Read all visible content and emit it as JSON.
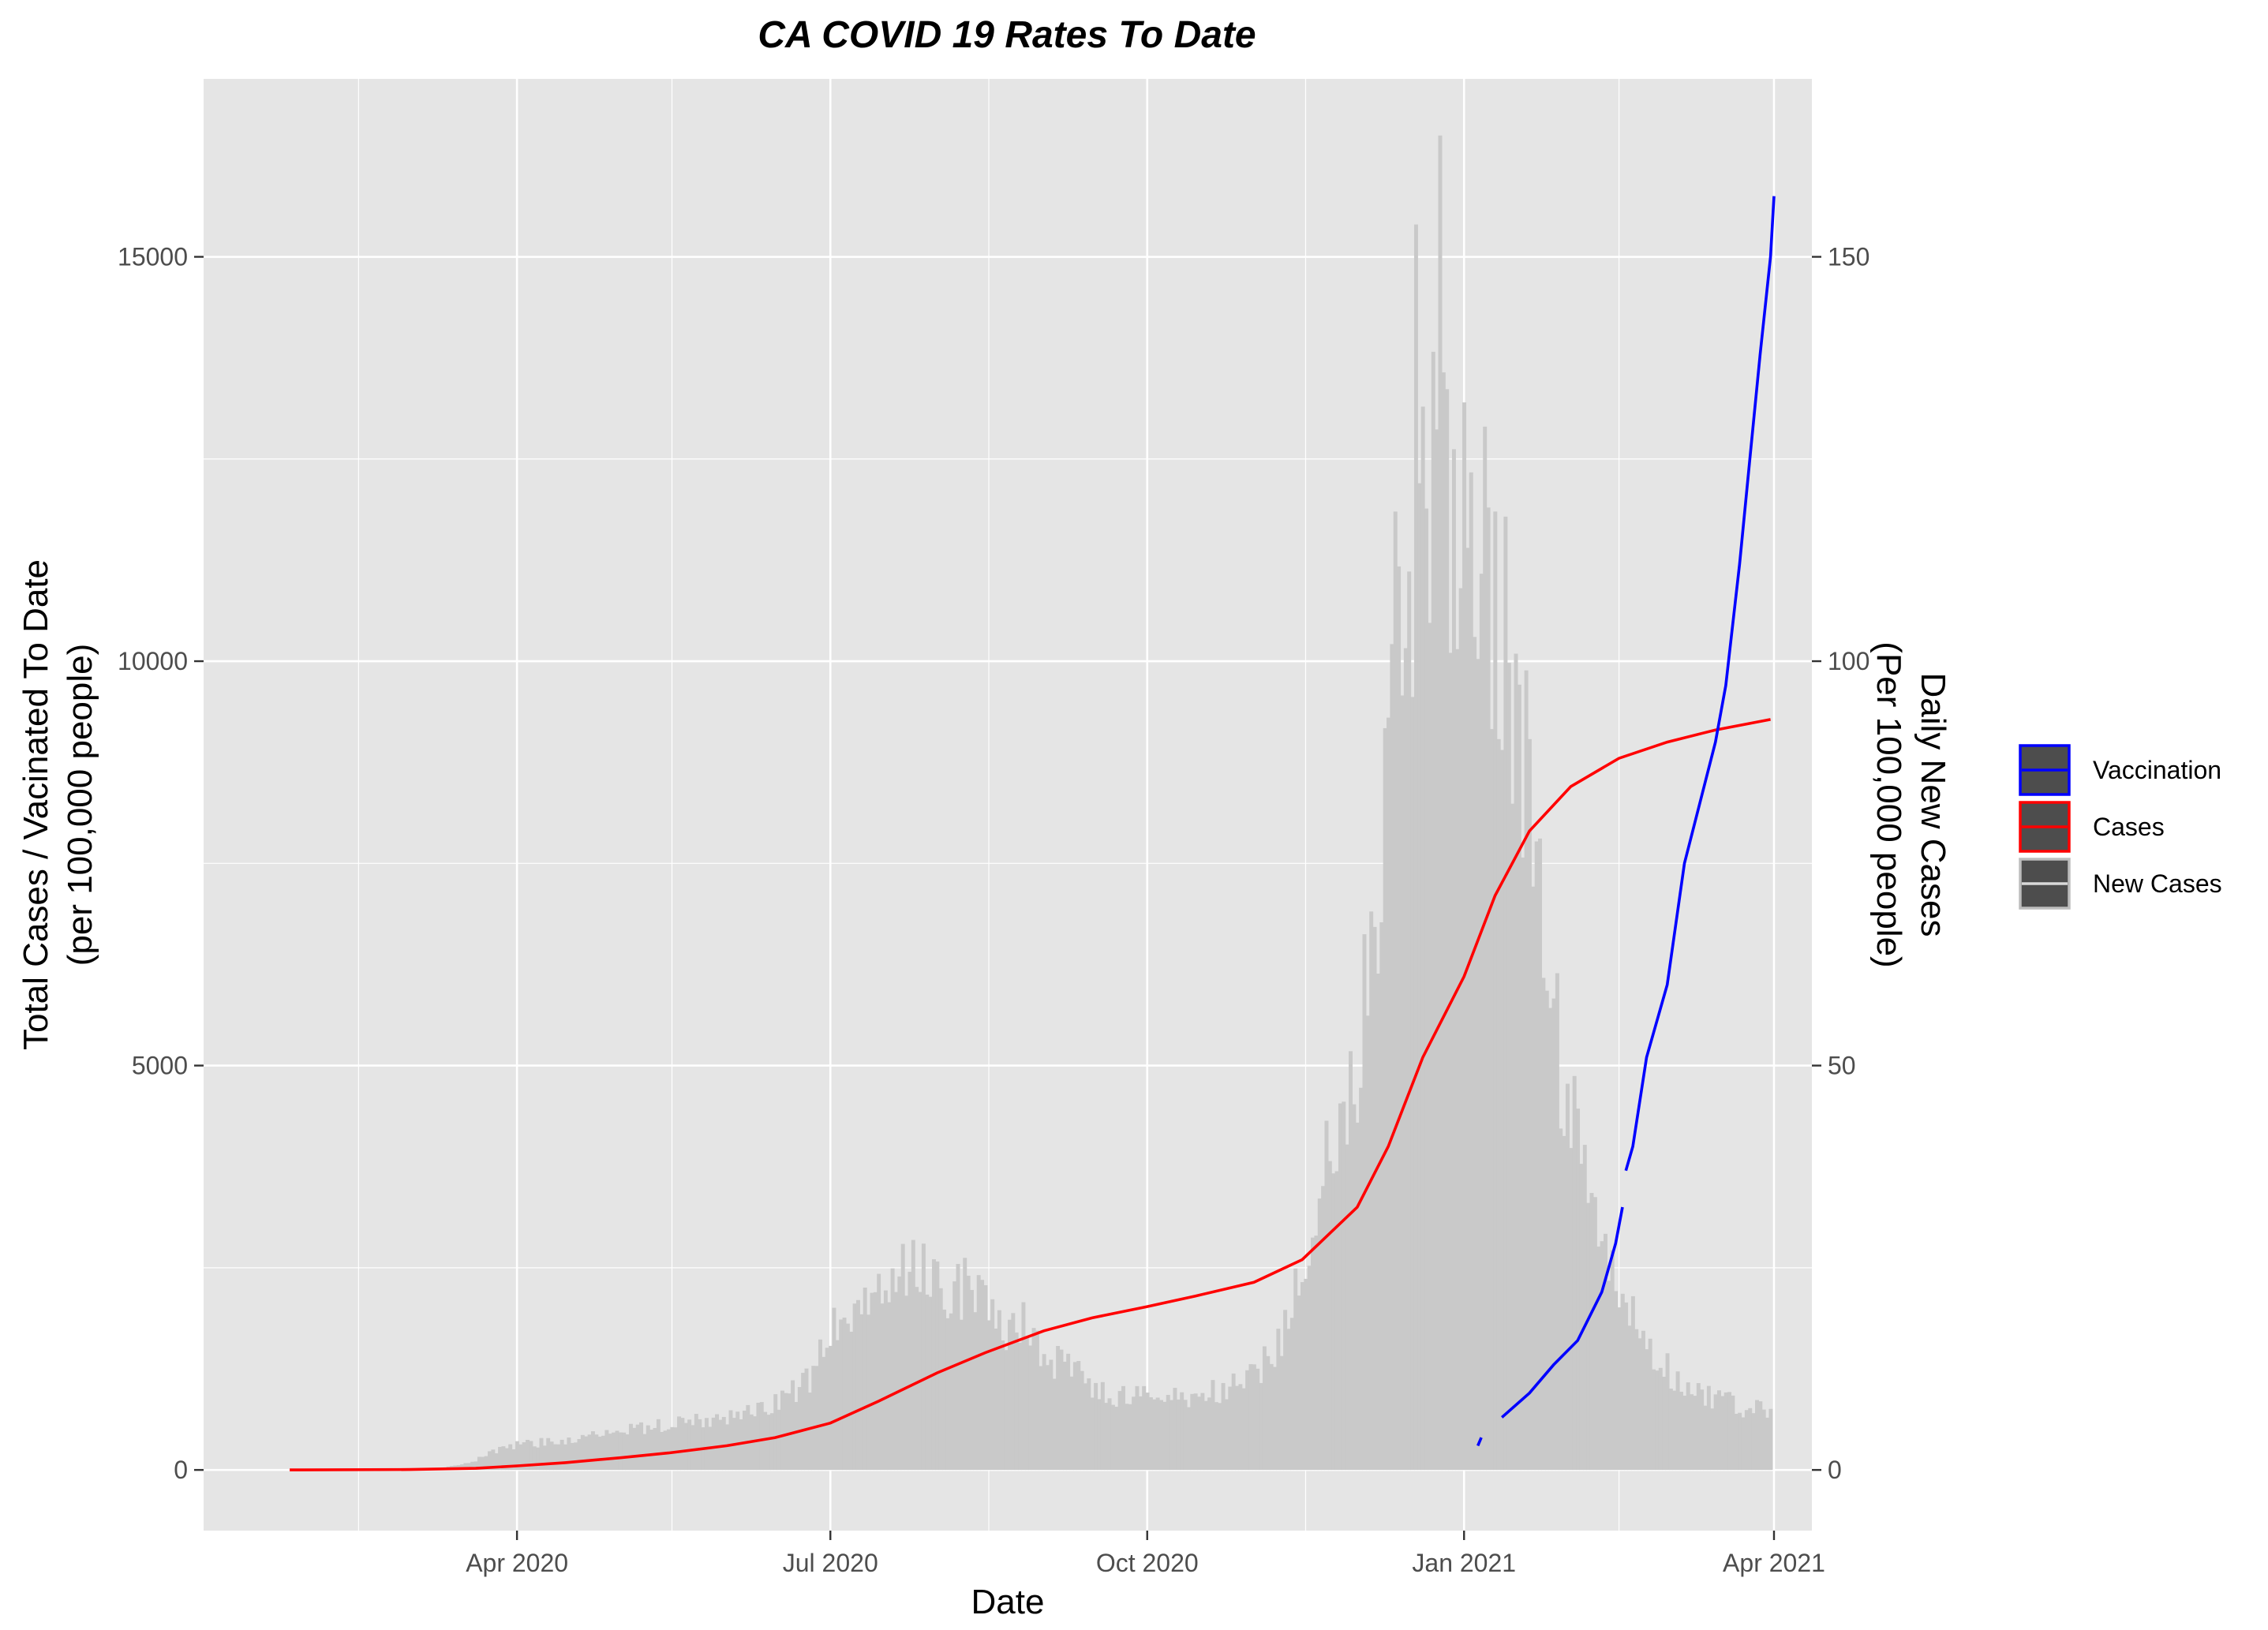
{
  "chart_data": {
    "type": "bar+line",
    "title": "CA COVID 19 Rates To Date",
    "xlabel": "Date",
    "ylabel_left": [
      "Total Cases / Vacinated To Date",
      "(per 100,000 people)"
    ],
    "ylabel_right": [
      "Daily New Cases",
      "(Per 100,000 people)"
    ],
    "x_range": [
      "2020-01-01",
      "2021-04-12"
    ],
    "x_ticks": [
      {
        "date": "2020-04-01",
        "label": "Apr 2020"
      },
      {
        "date": "2020-07-01",
        "label": "Jul 2020"
      },
      {
        "date": "2020-10-01",
        "label": "Oct 2020"
      },
      {
        "date": "2021-01-01",
        "label": "Jan 2021"
      },
      {
        "date": "2021-04-01",
        "label": "Apr 2021"
      }
    ],
    "x_minor_ticks": [
      "2020-02-15",
      "2020-05-16",
      "2020-08-16",
      "2020-11-16",
      "2021-02-15"
    ],
    "y_left": {
      "min": -750,
      "max": 17200,
      "ticks": [
        0,
        5000,
        10000,
        15000
      ],
      "minor": [
        2500,
        7500,
        12500
      ]
    },
    "y_right": {
      "min": -7.5,
      "max": 172,
      "ticks": [
        0,
        50,
        100,
        150
      ],
      "minor": [
        25,
        75,
        125
      ]
    },
    "legend": {
      "placement": "right",
      "items": [
        {
          "label": "Vaccination",
          "color": "#0000ff",
          "kind": "line"
        },
        {
          "label": "Cases",
          "color": "#ff0000",
          "kind": "line"
        },
        {
          "label": "New Cases",
          "color": "#d9d9d9",
          "kind": "line"
        }
      ]
    },
    "colors": {
      "panel": "#e5e5e5",
      "grid": "#ffffff",
      "bars": "#c9c9c9",
      "cases": "#ff0000",
      "vaccination": "#0000ff",
      "text": "#4d4d4d"
    },
    "series": [
      {
        "name": "New Cases",
        "axis": "right",
        "type": "bar",
        "points": [
          [
            "2020-03-10",
            0.2
          ],
          [
            "2020-03-18",
            0.8
          ],
          [
            "2020-03-24",
            2
          ],
          [
            "2020-03-31",
            3
          ],
          [
            "2020-04-10",
            3.5
          ],
          [
            "2020-04-20",
            4
          ],
          [
            "2020-05-01",
            5
          ],
          [
            "2020-05-15",
            5.5
          ],
          [
            "2020-06-01",
            6.5
          ],
          [
            "2020-06-15",
            8.5
          ],
          [
            "2020-06-25",
            11
          ],
          [
            "2020-07-01",
            17
          ],
          [
            "2020-07-08",
            21
          ],
          [
            "2020-07-15",
            22
          ],
          [
            "2020-07-22",
            24
          ],
          [
            "2020-07-29",
            25
          ],
          [
            "2020-08-05",
            22
          ],
          [
            "2020-08-12",
            23
          ],
          [
            "2020-08-19",
            17
          ],
          [
            "2020-08-26",
            18
          ],
          [
            "2020-09-02",
            14
          ],
          [
            "2020-09-10",
            12
          ],
          [
            "2020-09-20",
            9
          ],
          [
            "2020-10-01",
            9
          ],
          [
            "2020-10-15",
            9
          ],
          [
            "2020-10-25",
            10
          ],
          [
            "2020-11-01",
            12
          ],
          [
            "2020-11-08",
            15
          ],
          [
            "2020-11-15",
            25
          ],
          [
            "2020-11-22",
            37
          ],
          [
            "2020-11-29",
            45
          ],
          [
            "2020-12-06",
            68
          ],
          [
            "2020-12-13",
            110
          ],
          [
            "2020-12-20",
            120
          ],
          [
            "2020-12-27",
            115
          ],
          [
            "2021-01-03",
            110
          ],
          [
            "2021-01-10",
            110
          ],
          [
            "2021-01-17",
            95
          ],
          [
            "2021-01-24",
            65
          ],
          [
            "2021-01-31",
            45
          ],
          [
            "2021-02-07",
            33
          ],
          [
            "2021-02-14",
            22
          ],
          [
            "2021-02-21",
            17
          ],
          [
            "2021-02-28",
            13
          ],
          [
            "2021-03-07",
            10
          ],
          [
            "2021-03-14",
            9
          ],
          [
            "2021-03-21",
            8
          ],
          [
            "2021-03-31",
            7
          ]
        ],
        "spikes": [
          [
            "2020-12-18",
            154
          ],
          [
            "2020-12-19",
            122
          ],
          [
            "2020-12-25",
            165
          ],
          [
            "2021-01-01",
            132
          ],
          [
            "2021-01-04",
            103
          ],
          [
            "2021-01-07",
            129
          ],
          [
            "2021-01-08",
            119
          ]
        ]
      },
      {
        "name": "Cases",
        "axis": "left",
        "type": "line",
        "points": [
          [
            "2020-01-26",
            0
          ],
          [
            "2020-03-01",
            5
          ],
          [
            "2020-03-20",
            20
          ],
          [
            "2020-04-01",
            50
          ],
          [
            "2020-04-15",
            90
          ],
          [
            "2020-05-01",
            150
          ],
          [
            "2020-05-15",
            210
          ],
          [
            "2020-06-01",
            300
          ],
          [
            "2020-06-15",
            400
          ],
          [
            "2020-07-01",
            580
          ],
          [
            "2020-07-15",
            850
          ],
          [
            "2020-08-01",
            1200
          ],
          [
            "2020-08-15",
            1450
          ],
          [
            "2020-09-01",
            1720
          ],
          [
            "2020-09-15",
            1880
          ],
          [
            "2020-10-01",
            2020
          ],
          [
            "2020-10-15",
            2150
          ],
          [
            "2020-11-01",
            2320
          ],
          [
            "2020-11-15",
            2600
          ],
          [
            "2020-12-01",
            3250
          ],
          [
            "2020-12-10",
            4000
          ],
          [
            "2020-12-20",
            5100
          ],
          [
            "2021-01-01",
            6100
          ],
          [
            "2021-01-10",
            7100
          ],
          [
            "2021-01-20",
            7900
          ],
          [
            "2021-02-01",
            8450
          ],
          [
            "2021-02-15",
            8800
          ],
          [
            "2021-03-01",
            9000
          ],
          [
            "2021-03-15",
            9150
          ],
          [
            "2021-03-31",
            9280
          ]
        ]
      },
      {
        "name": "Vaccination",
        "axis": "left",
        "type": "line",
        "segments": [
          [
            [
              "2021-01-05",
              300
            ],
            [
              "2021-01-06",
              400
            ]
          ],
          [
            [
              "2021-01-12",
              650
            ],
            [
              "2021-01-20",
              950
            ],
            [
              "2021-01-27",
              1300
            ],
            [
              "2021-02-03",
              1600
            ],
            [
              "2021-02-10",
              2200
            ],
            [
              "2021-02-14",
              2800
            ],
            [
              "2021-02-16",
              3250
            ]
          ],
          [
            [
              "2021-02-17",
              3700
            ],
            [
              "2021-02-19",
              4000
            ],
            [
              "2021-02-23",
              5100
            ],
            [
              "2021-03-01",
              6000
            ],
            [
              "2021-03-06",
              7500
            ],
            [
              "2021-03-12",
              8500
            ],
            [
              "2021-03-15",
              9000
            ],
            [
              "2021-03-18",
              9700
            ],
            [
              "2021-03-22",
              11200
            ],
            [
              "2021-03-25",
              12500
            ],
            [
              "2021-03-28",
              13800
            ],
            [
              "2021-03-31",
              15000
            ],
            [
              "2021-04-01",
              15750
            ]
          ]
        ]
      }
    ]
  }
}
